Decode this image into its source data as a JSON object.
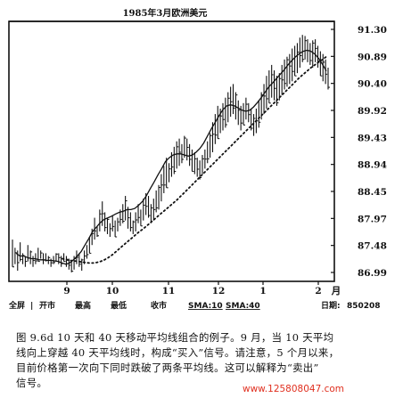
{
  "chart_data": {
    "type": "bar",
    "bar_style": "high-low",
    "title": "1985年3月欧洲美元",
    "x_tick_labels": [
      "9",
      "10",
      "11",
      "12",
      "1",
      "2",
      "月"
    ],
    "y_tick_labels": [
      "91.30",
      "90.89",
      "90.40",
      "89.92",
      "89.43",
      "88.94",
      "88.45",
      "87.97",
      "87.48",
      "86.99"
    ],
    "ylim": [
      86.85,
      91.45
    ],
    "x_axis_unit": "月",
    "bottom_bar": {
      "full_screen": "全屏",
      "open": "开市",
      "high": "最高",
      "low": "最低",
      "close": "收市",
      "sma10": "SMA:10",
      "sma40": "SMA:40",
      "date_label": "日期:",
      "date_value": "850208"
    },
    "series": [
      {
        "style": "high-low bars"
      },
      {
        "name": "SMA:10",
        "style": "solid"
      },
      {
        "name": "SMA:40",
        "style": "dotted"
      }
    ],
    "price_bars": [
      [
        87.05,
        87.55
      ],
      [
        87.1,
        87.4
      ],
      [
        86.98,
        87.35
      ],
      [
        87.15,
        87.5
      ],
      [
        87.1,
        87.3
      ],
      [
        87.05,
        87.25
      ],
      [
        87.15,
        87.45
      ],
      [
        87.1,
        87.35
      ],
      [
        87.05,
        87.25
      ],
      [
        87.1,
        87.3
      ],
      [
        87.15,
        87.4
      ],
      [
        87.2,
        87.35
      ],
      [
        87.1,
        87.3
      ],
      [
        87.15,
        87.3
      ],
      [
        87.1,
        87.25
      ],
      [
        87.05,
        87.2
      ],
      [
        87.1,
        87.25
      ],
      [
        87.15,
        87.3
      ],
      [
        87.1,
        87.3
      ],
      [
        87.05,
        87.25
      ],
      [
        87.15,
        87.3
      ],
      [
        87.05,
        87.25
      ],
      [
        87.0,
        87.2
      ],
      [
        86.95,
        87.15
      ],
      [
        87.0,
        87.25
      ],
      [
        87.1,
        87.35
      ],
      [
        87.05,
        87.3
      ],
      [
        86.98,
        87.2
      ],
      [
        87.1,
        87.35
      ],
      [
        87.2,
        87.45
      ],
      [
        87.3,
        87.6
      ],
      [
        87.45,
        87.75
      ],
      [
        87.55,
        87.95
      ],
      [
        87.6,
        87.8
      ],
      [
        87.7,
        88.1
      ],
      [
        87.8,
        88.25
      ],
      [
        87.7,
        88.05
      ],
      [
        87.65,
        87.95
      ],
      [
        87.6,
        87.85
      ],
      [
        87.7,
        88.0
      ],
      [
        87.6,
        87.9
      ],
      [
        87.7,
        87.95
      ],
      [
        87.8,
        88.1
      ],
      [
        87.85,
        88.2
      ],
      [
        87.9,
        88.35
      ],
      [
        87.75,
        88.15
      ],
      [
        87.7,
        88.05
      ],
      [
        87.65,
        87.9
      ],
      [
        87.7,
        88.05
      ],
      [
        87.85,
        88.2
      ],
      [
        87.8,
        88.1
      ],
      [
        87.9,
        88.3
      ],
      [
        88.0,
        88.4
      ],
      [
        87.95,
        88.35
      ],
      [
        87.85,
        88.2
      ],
      [
        87.9,
        88.3
      ],
      [
        88.05,
        88.45
      ],
      [
        88.1,
        88.55
      ],
      [
        88.25,
        88.75
      ],
      [
        88.4,
        88.9
      ],
      [
        88.5,
        89.05
      ],
      [
        88.6,
        88.95
      ],
      [
        88.7,
        89.15
      ],
      [
        88.75,
        89.25
      ],
      [
        88.85,
        89.35
      ],
      [
        88.9,
        89.4
      ],
      [
        88.95,
        89.3
      ],
      [
        89.05,
        89.45
      ],
      [
        89.0,
        89.4
      ],
      [
        88.9,
        89.3
      ],
      [
        88.8,
        89.2
      ],
      [
        88.75,
        89.15
      ],
      [
        88.7,
        89.05
      ],
      [
        88.65,
        89.0
      ],
      [
        88.75,
        89.1
      ],
      [
        88.85,
        89.2
      ],
      [
        88.95,
        89.35
      ],
      [
        89.05,
        89.5
      ],
      [
        89.15,
        89.7
      ],
      [
        89.3,
        89.85
      ],
      [
        89.4,
        90.0
      ],
      [
        89.5,
        89.95
      ],
      [
        89.55,
        90.05
      ],
      [
        89.6,
        90.15
      ],
      [
        89.7,
        90.25
      ],
      [
        89.8,
        90.35
      ],
      [
        89.85,
        90.4
      ],
      [
        89.75,
        90.25
      ],
      [
        89.65,
        90.1
      ],
      [
        89.55,
        90.0
      ],
      [
        89.65,
        90.05
      ],
      [
        89.75,
        90.15
      ],
      [
        89.7,
        90.05
      ],
      [
        89.55,
        89.95
      ],
      [
        89.45,
        89.85
      ],
      [
        89.5,
        89.95
      ],
      [
        89.6,
        90.1
      ],
      [
        89.75,
        90.25
      ],
      [
        89.85,
        90.4
      ],
      [
        89.95,
        90.55
      ],
      [
        90.05,
        90.65
      ],
      [
        90.15,
        90.75
      ],
      [
        90.1,
        90.65
      ],
      [
        90.0,
        90.55
      ],
      [
        90.1,
        90.6
      ],
      [
        90.2,
        90.75
      ],
      [
        90.3,
        90.85
      ],
      [
        90.35,
        90.9
      ],
      [
        90.4,
        90.95
      ],
      [
        90.45,
        91.05
      ],
      [
        90.55,
        91.1
      ],
      [
        90.6,
        91.15
      ],
      [
        90.7,
        91.25
      ],
      [
        90.8,
        91.3
      ],
      [
        90.85,
        91.28
      ],
      [
        90.8,
        91.22
      ],
      [
        90.75,
        91.15
      ],
      [
        90.7,
        91.2
      ],
      [
        90.8,
        91.22
      ],
      [
        90.7,
        91.1
      ],
      [
        90.55,
        91.0
      ],
      [
        90.45,
        90.95
      ],
      [
        90.4,
        90.85
      ],
      [
        90.3,
        90.7
      ]
    ],
    "sma10": [
      87.3,
      87.25,
      87.25,
      87.22,
      87.2,
      87.2,
      87.18,
      87.18,
      87.17,
      87.17,
      87.16,
      87.15,
      87.12,
      87.1,
      87.12,
      87.18,
      87.25,
      87.33,
      87.45,
      87.57,
      87.7,
      87.78,
      87.86,
      87.92,
      87.95,
      87.98,
      88.02,
      88.05,
      88.07,
      88.1,
      88.1,
      88.12,
      88.18,
      88.25,
      88.35,
      88.48,
      88.6,
      88.73,
      88.85,
      88.98,
      89.05,
      89.1,
      89.12,
      89.12,
      89.1,
      89.08,
      89.1,
      89.15,
      89.22,
      89.32,
      89.45,
      89.58,
      89.7,
      89.82,
      89.93,
      90.0,
      90.02,
      90.0,
      89.96,
      89.92,
      89.9,
      89.92,
      89.98,
      90.06,
      90.15,
      90.25,
      90.35,
      90.42,
      90.5,
      90.58,
      90.66,
      90.75,
      90.83,
      90.9,
      90.96,
      91.0,
      91.02,
      91.0,
      90.95,
      90.87,
      90.76,
      90.64
    ],
    "sma40": [
      87.2,
      87.18,
      87.17,
      87.16,
      87.15,
      87.14,
      87.13,
      87.12,
      87.12,
      87.13,
      87.15,
      87.18,
      87.22,
      87.27,
      87.33,
      87.39,
      87.45,
      87.51,
      87.57,
      87.63,
      87.69,
      87.74,
      87.8,
      87.86,
      87.92,
      87.98,
      88.04,
      88.1,
      88.16,
      88.22,
      88.28,
      88.35,
      88.42,
      88.49,
      88.56,
      88.63,
      88.7,
      88.77,
      88.84,
      88.91,
      88.98,
      89.05,
      89.12,
      89.19,
      89.26,
      89.33,
      89.4,
      89.47,
      89.54,
      89.61,
      89.68,
      89.75,
      89.82,
      89.89,
      89.96,
      90.03,
      90.1,
      90.17,
      90.24,
      90.31,
      90.38,
      90.45,
      90.52,
      90.58,
      90.64,
      90.7,
      90.75,
      90.8,
      90.85,
      90.9
    ]
  },
  "caption": {
    "lines": [
      "图 9.6d   10 天和 40 天移动平均线组合的例子。9 月，当 10 天平均",
      "线向上穿越 40 天平均线时，构成“买入”信号。请注意，5 个月以来，",
      "目前价格第一次向下同时跌破了两条平均线。这可以解释为“卖出”",
      "信号。"
    ]
  },
  "watermark": "www.125808047.com"
}
